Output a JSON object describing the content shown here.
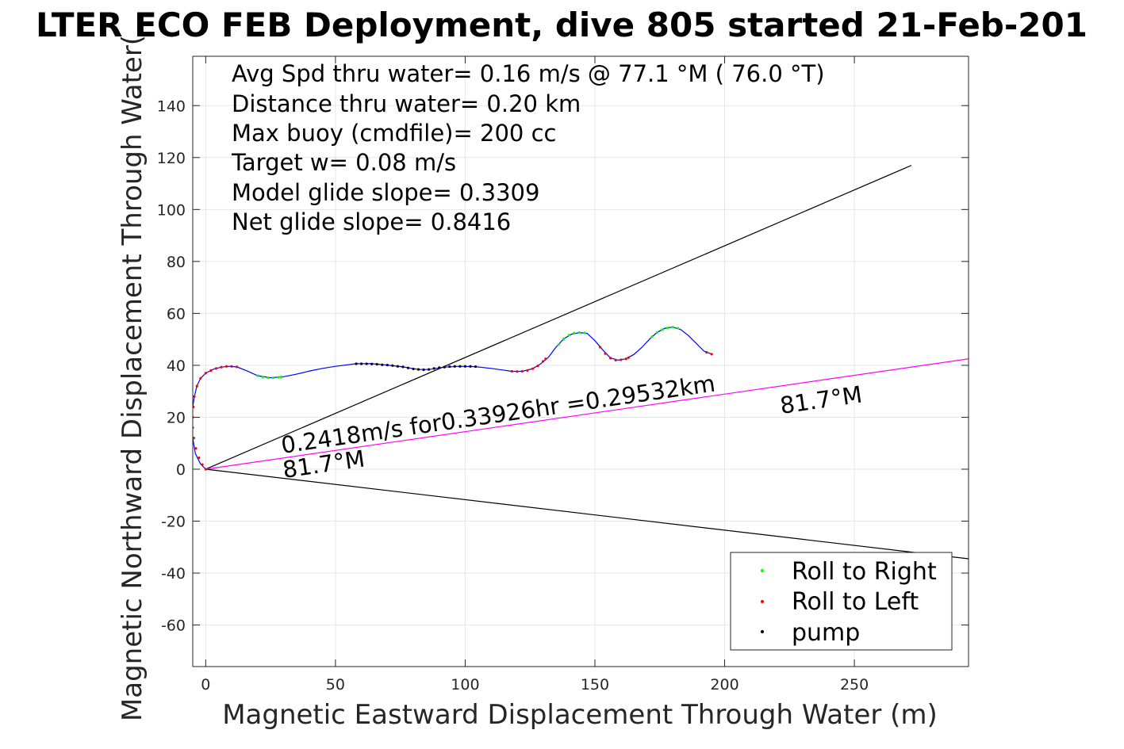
{
  "chart_data": {
    "type": "scatter",
    "title": "LTER ECO FEB Deployment, dive 805 started 21-Feb-201",
    "xlabel": "Magnetic Eastward Displacement Through Water (m)",
    "ylabel": "Magnetic Northward Displacement Through Water(",
    "xlim": [
      -5,
      294
    ],
    "ylim": [
      -76,
      159
    ],
    "grid": true,
    "legend_position": "bottom-right",
    "xticks": [
      0,
      50,
      100,
      150,
      200,
      250
    ],
    "yticks": [
      -60,
      -40,
      -20,
      0,
      20,
      40,
      60,
      80,
      100,
      120,
      140
    ],
    "info_lines": [
      "Avg Spd thru water=  0.16 m/s @  77.1 °M ( 76.0 °T)",
      "Distance thru water=  0.20 km",
      "Max buoy (cmdfile)= 200 cc",
      "Target w= 0.08 m/s",
      "Model glide slope= 0.3309",
      "Net glide slope= 0.8416"
    ],
    "annotations": {
      "speed": "0.2418m/s for0.33926hr =0.29532km",
      "heading_near": "81.7°M",
      "heading_far": "81.7°M"
    },
    "legend": [
      {
        "label": "Roll to Right",
        "color": "#00ff00"
      },
      {
        "label": "Roll to Left",
        "color": "#ff0000"
      },
      {
        "label": "pump",
        "color": "#000000"
      }
    ],
    "reference_lines": [
      {
        "from": [
          0,
          0
        ],
        "to": [
          272,
          117
        ],
        "color": "#000000"
      },
      {
        "from": [
          0,
          0
        ],
        "to": [
          294,
          -34.5
        ],
        "color": "#000000"
      },
      {
        "from": [
          0,
          0
        ],
        "to": [
          294,
          42.5
        ],
        "color": "#ff00ff"
      }
    ],
    "track": {
      "color": "#0000ff",
      "points": [
        [
          0,
          0
        ],
        [
          -2,
          2
        ],
        [
          -4,
          6
        ],
        [
          -5,
          12
        ],
        [
          -5.2,
          18
        ],
        [
          -5,
          24
        ],
        [
          -4.4,
          28
        ],
        [
          -3.4,
          32
        ],
        [
          -2,
          35
        ],
        [
          0,
          37
        ],
        [
          3,
          38.5
        ],
        [
          6,
          39.3
        ],
        [
          9,
          39.6
        ],
        [
          12,
          39.4
        ],
        [
          16,
          37.8
        ],
        [
          20,
          36
        ],
        [
          25,
          35.2
        ],
        [
          30,
          35.6
        ],
        [
          35,
          36.6
        ],
        [
          40,
          37.8
        ],
        [
          45,
          38.8
        ],
        [
          50,
          39.6
        ],
        [
          58,
          40.6
        ],
        [
          64,
          40.6
        ],
        [
          70,
          40.1
        ],
        [
          76,
          39.4
        ],
        [
          82,
          38.4
        ],
        [
          86,
          38.4
        ],
        [
          92,
          39.3
        ],
        [
          98,
          39.6
        ],
        [
          104,
          39.5
        ],
        [
          110,
          38.8
        ],
        [
          118,
          37.7
        ],
        [
          122,
          37.7
        ],
        [
          126,
          38.7
        ],
        [
          129,
          40.5
        ],
        [
          132,
          43
        ],
        [
          135,
          47
        ],
        [
          138,
          50.2
        ],
        [
          141,
          52
        ],
        [
          144,
          52.6
        ],
        [
          147,
          52.3
        ],
        [
          150,
          49.5
        ],
        [
          153,
          46
        ],
        [
          156,
          42.8
        ],
        [
          159,
          42
        ],
        [
          162,
          42.5
        ],
        [
          165,
          44.2
        ],
        [
          168,
          46.8
        ],
        [
          171,
          50
        ],
        [
          174,
          52.7
        ],
        [
          177,
          54.3
        ],
        [
          180,
          54.7
        ],
        [
          183,
          53.8
        ],
        [
          186,
          51.5
        ],
        [
          189,
          48.5
        ],
        [
          192,
          45.5
        ],
        [
          195,
          44.3
        ]
      ]
    },
    "series": [
      {
        "name": "Roll to Right",
        "color": "#00ff00",
        "points": [
          [
            20,
            36
          ],
          [
            22,
            35.5
          ],
          [
            24,
            35.2
          ],
          [
            26,
            35.2
          ],
          [
            28,
            35.4
          ],
          [
            29,
            35.5
          ],
          [
            136,
            48
          ],
          [
            138,
            50.2
          ],
          [
            140,
            51.6
          ],
          [
            142,
            52.4
          ],
          [
            144,
            52.6
          ],
          [
            146,
            52.5
          ],
          [
            172,
            51
          ],
          [
            174,
            52.7
          ],
          [
            176,
            53.8
          ],
          [
            178,
            54.4
          ],
          [
            180,
            54.7
          ],
          [
            182,
            54.3
          ]
        ]
      },
      {
        "name": "Roll to Left",
        "color": "#ff0000",
        "points": [
          [
            -4.4,
            28
          ],
          [
            -4.8,
            24
          ],
          [
            -5,
            20
          ],
          [
            -5,
            16
          ],
          [
            -4.6,
            12
          ],
          [
            -3.8,
            8
          ],
          [
            -2.6,
            4.4
          ],
          [
            -1.3,
            1.8
          ],
          [
            0,
            0
          ],
          [
            -3.4,
            32
          ],
          [
            -2,
            35
          ],
          [
            0,
            37
          ],
          [
            2,
            38
          ],
          [
            4,
            38.8
          ],
          [
            6,
            39.3
          ],
          [
            8,
            39.6
          ],
          [
            10,
            39.6
          ],
          [
            12,
            39.4
          ],
          [
            118,
            37.7
          ],
          [
            120,
            37.6
          ],
          [
            122,
            37.7
          ],
          [
            124,
            38
          ],
          [
            126,
            38.7
          ],
          [
            128,
            39.8
          ],
          [
            130,
            41.5
          ],
          [
            131,
            42.5
          ],
          [
            152,
            47
          ],
          [
            154,
            44.5
          ],
          [
            156,
            42.8
          ],
          [
            158,
            42
          ],
          [
            160,
            42.1
          ],
          [
            162,
            42.5
          ],
          [
            163,
            43
          ],
          [
            193,
            45
          ],
          [
            195,
            44.3
          ]
        ]
      },
      {
        "name": "pump",
        "color": "#000000",
        "points": [
          [
            58,
            40.6
          ],
          [
            60,
            40.6
          ],
          [
            62,
            40.6
          ],
          [
            64,
            40.5
          ],
          [
            66,
            40.4
          ],
          [
            68,
            40.2
          ],
          [
            70,
            40.1
          ],
          [
            72,
            39.9
          ],
          [
            74,
            39.6
          ],
          [
            76,
            39.4
          ],
          [
            78,
            39
          ],
          [
            80,
            38.6
          ],
          [
            82,
            38.4
          ],
          [
            84,
            38.3
          ],
          [
            86,
            38.4
          ],
          [
            88,
            38.8
          ],
          [
            90,
            39.1
          ],
          [
            92,
            39.3
          ],
          [
            94,
            39.5
          ],
          [
            96,
            39.6
          ],
          [
            98,
            39.6
          ],
          [
            100,
            39.6
          ],
          [
            102,
            39.6
          ],
          [
            104,
            39.5
          ]
        ]
      }
    ]
  }
}
